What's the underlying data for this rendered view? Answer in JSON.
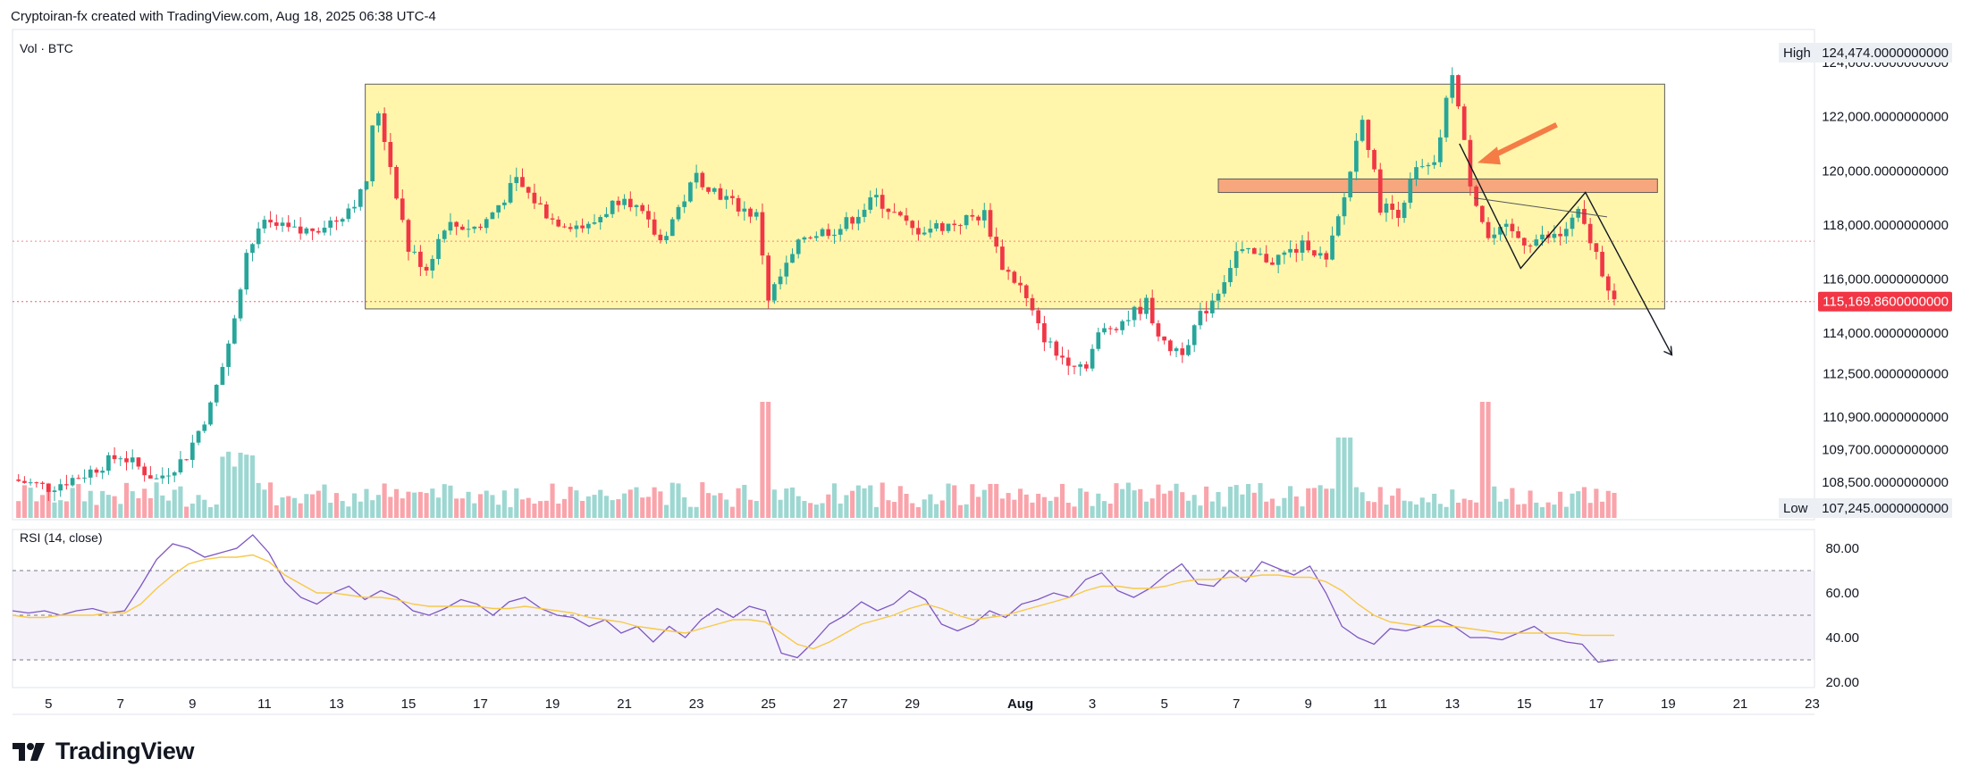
{
  "header": {
    "caption": "Cryptoiran-fx created with TradingView.com, Aug 18, 2025 06:38 UTC-4"
  },
  "footer": {
    "brand": "TradingView"
  },
  "colors": {
    "up": "#26a69a",
    "down": "#f23645",
    "zone": "#fff59d",
    "resistance": "#f7a27a",
    "arrow": "#f57c45",
    "rsi": "#7e57c2",
    "rsi_ma": "#f7c948"
  },
  "chart_data": [
    {
      "type": "candlestick",
      "title": "",
      "pane_label": "Vol · BTC",
      "price_labels": {
        "high_tag": "High",
        "high_value": "124,474.0000000000",
        "low_tag": "Low",
        "low_value": "107,245.0000000000",
        "last_value": "115,169.8600000000"
      },
      "y_ticks": [
        {
          "value": 124000,
          "label": "124,000.0000000000"
        },
        {
          "value": 122000,
          "label": "122,000.0000000000"
        },
        {
          "value": 120000,
          "label": "120,000.0000000000"
        },
        {
          "value": 118000,
          "label": "118,000.0000000000"
        },
        {
          "value": 116000,
          "label": "116,000.0000000000"
        },
        {
          "value": 114000,
          "label": "114,000.0000000000"
        },
        {
          "value": 112500,
          "label": "112,500.0000000000"
        },
        {
          "value": 110900,
          "label": "110,900.0000000000"
        },
        {
          "value": 109700,
          "label": "109,700.0000000000"
        },
        {
          "value": 108500,
          "label": "108,500.0000000000"
        }
      ],
      "x_ticks": [
        "5",
        "7",
        "9",
        "11",
        "13",
        "15",
        "17",
        "19",
        "21",
        "23",
        "25",
        "27",
        "29",
        "Aug",
        "3",
        "5",
        "7",
        "9",
        "11",
        "13",
        "15",
        "17",
        "19",
        "21",
        "23"
      ],
      "ohlc_path": [
        {
          "day": 4.0,
          "close": 108600
        },
        {
          "day": 5.0,
          "close": 108300
        },
        {
          "day": 6.0,
          "close": 108800
        },
        {
          "day": 7.0,
          "close": 109500
        },
        {
          "day": 8.0,
          "close": 108600
        },
        {
          "day": 8.8,
          "close": 109400
        },
        {
          "day": 9.5,
          "close": 111300
        },
        {
          "day": 10.0,
          "close": 113500
        },
        {
          "day": 10.5,
          "close": 117000
        },
        {
          "day": 11.0,
          "close": 118000
        },
        {
          "day": 12.0,
          "close": 117700
        },
        {
          "day": 13.0,
          "close": 118200
        },
        {
          "day": 13.8,
          "close": 119300
        },
        {
          "day": 14.1,
          "close": 122600
        },
        {
          "day": 14.6,
          "close": 119600
        },
        {
          "day": 15.0,
          "close": 117100
        },
        {
          "day": 15.5,
          "close": 116400
        },
        {
          "day": 16.0,
          "close": 118000
        },
        {
          "day": 17.0,
          "close": 117900
        },
        {
          "day": 18.0,
          "close": 119600
        },
        {
          "day": 19.0,
          "close": 118200
        },
        {
          "day": 20.0,
          "close": 117900
        },
        {
          "day": 21.0,
          "close": 119200
        },
        {
          "day": 22.0,
          "close": 117400
        },
        {
          "day": 23.0,
          "close": 119800
        },
        {
          "day": 24.0,
          "close": 118800
        },
        {
          "day": 24.7,
          "close": 118300
        },
        {
          "day": 25.0,
          "close": 115300
        },
        {
          "day": 26.0,
          "close": 117600
        },
        {
          "day": 27.0,
          "close": 117900
        },
        {
          "day": 28.0,
          "close": 119000
        },
        {
          "day": 29.0,
          "close": 117800
        },
        {
          "day": 30.0,
          "close": 118000
        },
        {
          "day": 31.0,
          "close": 118400
        },
        {
          "day": 31.5,
          "close": 116500
        },
        {
          "day": 32.0,
          "close": 115700
        },
        {
          "day": 32.5,
          "close": 114200
        },
        {
          "day": 33.0,
          "close": 113200
        },
        {
          "day": 33.8,
          "close": 112800
        },
        {
          "day": 34.2,
          "close": 114000
        },
        {
          "day": 35.0,
          "close": 114600
        },
        {
          "day": 35.5,
          "close": 115100
        },
        {
          "day": 36.0,
          "close": 113500
        },
        {
          "day": 36.5,
          "close": 113400
        },
        {
          "day": 37.0,
          "close": 114600
        },
        {
          "day": 37.5,
          "close": 115600
        },
        {
          "day": 38.0,
          "close": 117000
        },
        {
          "day": 39.0,
          "close": 116700
        },
        {
          "day": 40.0,
          "close": 117300
        },
        {
          "day": 40.5,
          "close": 116600
        },
        {
          "day": 41.0,
          "close": 119000
        },
        {
          "day": 41.5,
          "close": 122100
        },
        {
          "day": 42.0,
          "close": 118700
        },
        {
          "day": 42.5,
          "close": 118500
        },
        {
          "day": 43.0,
          "close": 120000
        },
        {
          "day": 43.5,
          "close": 120100
        },
        {
          "day": 44.0,
          "close": 123700
        },
        {
          "day": 44.5,
          "close": 119600
        },
        {
          "day": 45.0,
          "close": 117500
        },
        {
          "day": 45.5,
          "close": 117800
        },
        {
          "day": 46.0,
          "close": 117400
        },
        {
          "day": 47.0,
          "close": 117600
        },
        {
          "day": 47.5,
          "close": 118400
        },
        {
          "day": 48.0,
          "close": 116900
        },
        {
          "day": 48.5,
          "close": 115200
        }
      ],
      "volume": "relative bars below price, highest near Jul 25 and Aug 14",
      "drawings": [
        {
          "type": "rectangle",
          "label": "range zone",
          "color": "#fff59d",
          "day_from": 13.8,
          "day_to": 49.9,
          "price_from": 114900,
          "price_to": 123200
        },
        {
          "type": "rectangle",
          "label": "resistance",
          "color": "#f7a27a",
          "day_from": 37.5,
          "day_to": 49.7,
          "price_from": 119200,
          "price_to": 119700
        },
        {
          "type": "arrow",
          "label": "orange arrow",
          "from_day": 46.9,
          "from_price": 121700,
          "to_day": 44.7,
          "to_price": 120300
        },
        {
          "type": "path",
          "label": "zigzag",
          "points": [
            [
              44.2,
              121000
            ],
            [
              45.9,
              116400
            ],
            [
              47.7,
              119200
            ],
            [
              50.1,
              113200
            ]
          ]
        }
      ],
      "grid": false
    },
    {
      "type": "line",
      "title": "",
      "pane_label": "RSI (14, close)",
      "y_ticks": [
        "80.00",
        "60.00",
        "40.00",
        "20.00"
      ],
      "levels": [
        70,
        50,
        30
      ],
      "series": [
        {
          "color": "#7e57c2",
          "values": [
            52,
            51,
            52,
            50,
            52,
            53,
            51,
            52,
            63,
            75,
            82,
            80,
            76,
            78,
            80,
            86,
            78,
            65,
            58,
            55,
            60,
            63,
            57,
            61,
            58,
            52,
            50,
            53,
            57,
            55,
            50,
            56,
            58,
            53,
            50,
            49,
            45,
            48,
            42,
            45,
            38,
            45,
            40,
            48,
            53,
            49,
            54,
            52,
            33,
            31,
            38,
            46,
            50,
            56,
            52,
            55,
            61,
            57,
            46,
            43,
            46,
            52,
            49,
            55,
            57,
            60,
            58,
            66,
            69,
            61,
            58,
            62,
            68,
            73,
            64,
            63,
            70,
            65,
            74,
            71,
            68,
            72,
            60,
            45,
            40,
            37,
            44,
            43,
            45,
            48,
            45,
            40,
            40,
            39,
            42,
            45,
            40,
            38,
            37,
            29,
            30
          ]
        },
        {
          "color": "#f7c948",
          "values": [
            50,
            49,
            49,
            50,
            50,
            50,
            51,
            51,
            55,
            62,
            68,
            73,
            75,
            76,
            76,
            77,
            74,
            68,
            64,
            60,
            60,
            59,
            58,
            58,
            57,
            55,
            54,
            54,
            54,
            54,
            53,
            53,
            54,
            53,
            52,
            51,
            49,
            48,
            47,
            45,
            44,
            43,
            42,
            44,
            46,
            48,
            48,
            47,
            42,
            37,
            35,
            38,
            42,
            46,
            48,
            50,
            53,
            55,
            53,
            50,
            48,
            49,
            50,
            52,
            54,
            56,
            58,
            61,
            63,
            63,
            62,
            62,
            63,
            65,
            66,
            66,
            67,
            67,
            68,
            68,
            67,
            67,
            65,
            61,
            55,
            50,
            47,
            46,
            45,
            45,
            45,
            44,
            43,
            42,
            42,
            42,
            42,
            42,
            41,
            41,
            41
          ]
        }
      ]
    }
  ]
}
